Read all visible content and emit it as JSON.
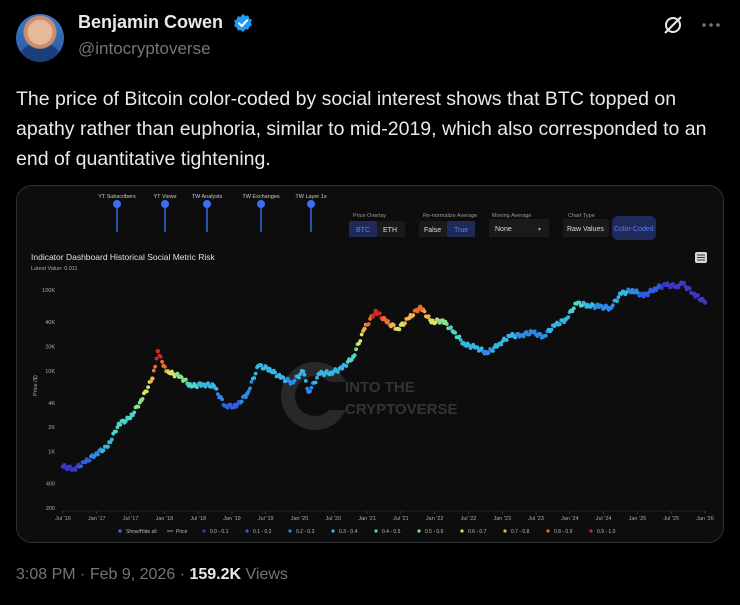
{
  "author": {
    "name": "Benjamin Cowen",
    "handle": "@intocryptoverse",
    "verified": true
  },
  "tweet": {
    "text": "The price of Bitcoin color-coded by social interest shows that BTC topped on apathy rather than euphoria, similar to mid-2019, which also corresponded to an end of quantitative tightening."
  },
  "footer": {
    "time": "3:08 PM",
    "date": "Feb 9, 2026",
    "views_count": "159.2K",
    "views_label": "Views",
    "sep": "·"
  },
  "icons": {
    "verified": "verified-badge-icon",
    "grok": "grok-icon",
    "more": "more-icon",
    "menu": "hamburger-menu-icon",
    "watermark": "into-the-cryptoverse-logo"
  },
  "colors": {
    "verified": "#1d9bf0",
    "chart_bg": "#0d0d0d",
    "selected_button": "#1f2a5a",
    "risk_scale": [
      "#3b38c9",
      "#2f5fe0",
      "#2d8ae6",
      "#37b6e5",
      "#4fd6c8",
      "#8be08f",
      "#d9e36a",
      "#f0b24a",
      "#e8702f",
      "#d0291f"
    ]
  },
  "dashboard": {
    "sliders": [
      "YT Subscribers",
      "YT Views",
      "TW Analysts",
      "TW Exchanges",
      "TW Layer 1s"
    ],
    "price_overlay": {
      "label": "Price Overlay",
      "options": [
        "BTC",
        "ETH"
      ],
      "selected": "BTC"
    },
    "renormalize": {
      "label": "Re-normalize Average",
      "options": [
        "False",
        "True"
      ],
      "selected": "True"
    },
    "moving_average": {
      "label": "Moving Average",
      "value": "None"
    },
    "chart_type": {
      "label": "Chart Type",
      "options": [
        "Raw Values",
        "Color-Coded"
      ],
      "selected": "Color-Coded"
    },
    "watermark": [
      "INTO THE",
      "CRYPTOVERSE"
    ]
  },
  "chart_data": {
    "type": "scatter",
    "title": "Indicator Dashboard Historical Social Metric Risk",
    "subtitle": "Latest Value: 0.011",
    "ylabel": "Price ($)",
    "yscale": "log",
    "ylim": [
      200,
      100000
    ],
    "yticks": [
      {
        "label": "100K",
        "value": 100000
      },
      {
        "label": "40K",
        "value": 40000
      },
      {
        "label": "20K",
        "value": 20000
      },
      {
        "label": "10K",
        "value": 10000
      },
      {
        "label": "4K",
        "value": 4000
      },
      {
        "label": "2K",
        "value": 2000
      },
      {
        "label": "1K",
        "value": 1000
      },
      {
        "label": "400",
        "value": 400
      },
      {
        "label": "200",
        "value": 200
      }
    ],
    "xticks": [
      "Jul '16",
      "Jan '17",
      "Jul '17",
      "Jan '18",
      "Jul '18",
      "Jan '19",
      "Jul '19",
      "Jan '20",
      "Jul '20",
      "Jan '21",
      "Jul '21",
      "Jan '22",
      "Jul '22",
      "Jan '23",
      "Jul '23",
      "Jan '24",
      "Jul '24",
      "Jan '25",
      "Jul '25",
      "Jan '26"
    ],
    "xlim": [
      "2016-07",
      "2026-02"
    ],
    "legend": [
      "Show/Hide all",
      "Price",
      "0.0 - 0.1",
      "0.1 - 0.2",
      "0.2 - 0.3",
      "0.3 - 0.4",
      "0.4 - 0.5",
      "0.5 - 0.6",
      "0.6 - 0.7",
      "0.7 - 0.8",
      "0.8 - 0.9",
      "0.9 - 1.0"
    ],
    "series": [
      {
        "points": [
          [
            "2016-07",
            650,
            0.0
          ],
          [
            "2016-09",
            610,
            0.0
          ],
          [
            "2016-11",
            740,
            0.1
          ],
          [
            "2017-01",
            950,
            0.2
          ],
          [
            "2017-03",
            1150,
            0.3
          ],
          [
            "2017-05",
            2200,
            0.4
          ],
          [
            "2017-07",
            2600,
            0.4
          ],
          [
            "2017-09",
            4300,
            0.5
          ],
          [
            "2017-11",
            8000,
            0.7
          ],
          [
            "2017-12",
            17500,
            0.9
          ],
          [
            "2018-01",
            11500,
            0.8
          ],
          [
            "2018-02",
            9500,
            0.6
          ],
          [
            "2018-04",
            8500,
            0.5
          ],
          [
            "2018-06",
            6400,
            0.4
          ],
          [
            "2018-08",
            6800,
            0.3
          ],
          [
            "2018-10",
            6500,
            0.3
          ],
          [
            "2018-12",
            3700,
            0.1
          ],
          [
            "2019-02",
            3600,
            0.1
          ],
          [
            "2019-04",
            5200,
            0.2
          ],
          [
            "2019-06",
            11500,
            0.3
          ],
          [
            "2019-08",
            10500,
            0.3
          ],
          [
            "2019-10",
            8200,
            0.3
          ],
          [
            "2019-12",
            7200,
            0.2
          ],
          [
            "2020-02",
            9800,
            0.3
          ],
          [
            "2020-03",
            5500,
            0.2
          ],
          [
            "2020-05",
            9200,
            0.3
          ],
          [
            "2020-07",
            9500,
            0.3
          ],
          [
            "2020-09",
            10700,
            0.3
          ],
          [
            "2020-11",
            15000,
            0.4
          ],
          [
            "2021-01",
            33000,
            0.7
          ],
          [
            "2021-03",
            55000,
            0.9
          ],
          [
            "2021-05",
            40000,
            0.8
          ],
          [
            "2021-07",
            33000,
            0.6
          ],
          [
            "2021-09",
            45000,
            0.7
          ],
          [
            "2021-11",
            62000,
            0.8
          ],
          [
            "2022-01",
            40000,
            0.6
          ],
          [
            "2022-03",
            42000,
            0.5
          ],
          [
            "2022-05",
            30000,
            0.4
          ],
          [
            "2022-07",
            21000,
            0.3
          ],
          [
            "2022-09",
            19500,
            0.3
          ],
          [
            "2022-11",
            16500,
            0.2
          ],
          [
            "2023-01",
            21000,
            0.3
          ],
          [
            "2023-03",
            27000,
            0.3
          ],
          [
            "2023-05",
            27500,
            0.2
          ],
          [
            "2023-07",
            30000,
            0.2
          ],
          [
            "2023-09",
            26500,
            0.2
          ],
          [
            "2023-11",
            36000,
            0.3
          ],
          [
            "2024-01",
            43000,
            0.3
          ],
          [
            "2024-03",
            68000,
            0.4
          ],
          [
            "2024-05",
            65000,
            0.3
          ],
          [
            "2024-07",
            62000,
            0.2
          ],
          [
            "2024-09",
            60000,
            0.2
          ],
          [
            "2024-11",
            90000,
            0.3
          ],
          [
            "2025-01",
            100000,
            0.2
          ],
          [
            "2025-03",
            84000,
            0.1
          ],
          [
            "2025-05",
            104000,
            0.1
          ],
          [
            "2025-07",
            115000,
            0.0
          ],
          [
            "2025-09",
            112000,
            0.0
          ],
          [
            "2025-10",
            120000,
            0.0
          ],
          [
            "2025-12",
            90000,
            0.0
          ],
          [
            "2026-02",
            70000,
            0.0
          ]
        ]
      }
    ]
  }
}
